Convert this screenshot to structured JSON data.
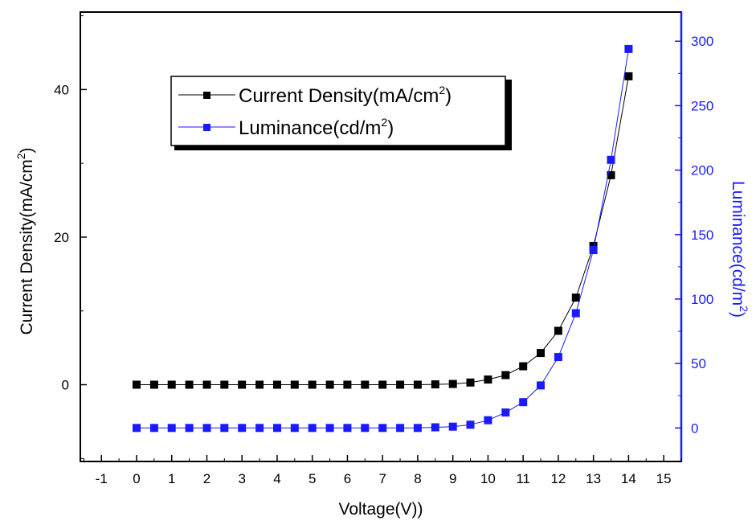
{
  "chart_data": {
    "type": "line",
    "xlabel": "Voltage(V))",
    "xlim": [
      -1.6,
      15.5
    ],
    "xticks": [
      "-1",
      "0",
      "1",
      "2",
      "3",
      "4",
      "5",
      "6",
      "7",
      "8",
      "9",
      "10",
      "11",
      "12",
      "13",
      "14",
      "15"
    ],
    "y_left": {
      "label": "Current Density(mA/cm",
      "label_sup": "2",
      "label_tail": ")",
      "lim": [
        -10.4,
        50.5
      ],
      "ticks": [
        0,
        20,
        40
      ],
      "color": "#000000"
    },
    "y_right": {
      "label": "Luminance(cd/m",
      "label_sup": "2",
      "label_tail": ")",
      "lim": [
        -26,
        322.6
      ],
      "ticks": [
        0,
        50,
        100,
        150,
        200,
        250,
        300
      ],
      "color": "#1a1aff"
    },
    "x": [
      0,
      0.5,
      1,
      1.5,
      2,
      2.5,
      3,
      3.5,
      4,
      4.5,
      5,
      5.5,
      6,
      6.5,
      7,
      7.5,
      8,
      8.5,
      9,
      9.5,
      10,
      10.5,
      11,
      11.5,
      12,
      12.5,
      13,
      13.5,
      14
    ],
    "series": [
      {
        "name": "Current Density(mA/cm",
        "name_sup": "2",
        "name_tail": ")",
        "axis": "left",
        "color": "#000000",
        "values": [
          0,
          0,
          0,
          0,
          0,
          0,
          0,
          0,
          0,
          0,
          0,
          0,
          0,
          0,
          0,
          0,
          0,
          0.05,
          0.1,
          0.3,
          0.7,
          1.3,
          2.5,
          4.3,
          7.3,
          11.8,
          18.8,
          28.4,
          41.8
        ]
      },
      {
        "name": "Luminance(cd/m",
        "name_sup": "2",
        "name_tail": ")",
        "axis": "right",
        "color": "#1a1aff",
        "values": [
          0,
          0,
          0,
          0,
          0,
          0,
          0,
          0,
          0,
          0,
          0,
          0,
          0,
          0,
          0,
          0,
          0,
          0.5,
          1,
          2.5,
          6,
          12,
          20,
          33,
          55,
          89,
          138,
          208,
          294
        ]
      }
    ],
    "legend_position": "top-left",
    "grid": false
  }
}
